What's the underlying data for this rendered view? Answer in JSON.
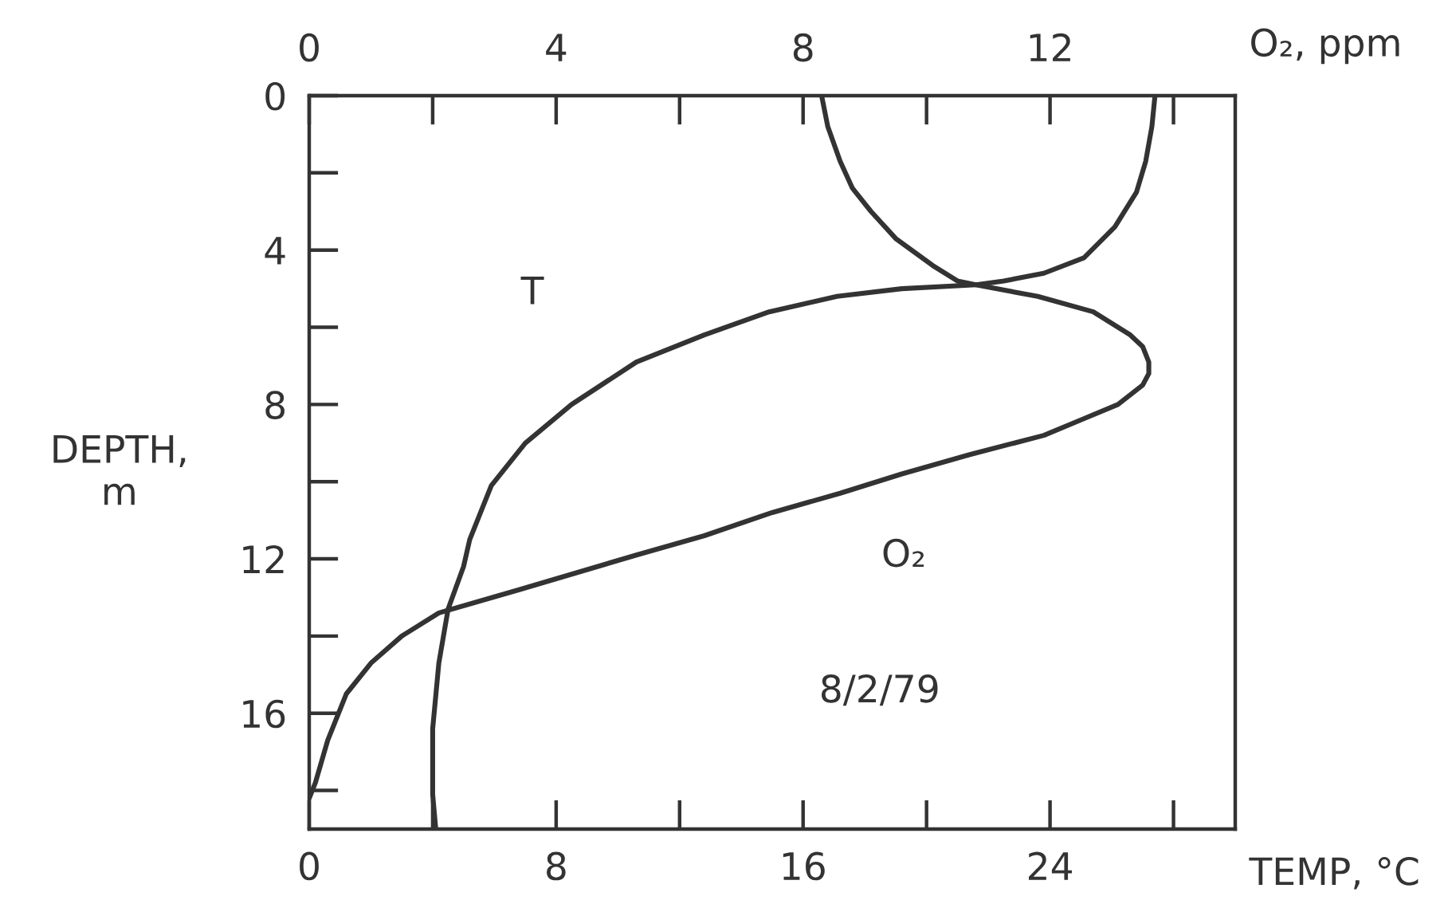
{
  "chart_data": {
    "type": "line",
    "xlabel": "TEMP, °C",
    "x2label": "O₂, ppm",
    "ylabel": "DEPTH,\nm",
    "annotations": [
      "8/2/79"
    ],
    "xlim": [
      0,
      30
    ],
    "xticks": [
      0,
      8,
      16,
      24
    ],
    "x2lim": [
      0,
      15
    ],
    "x2ticks": [
      0,
      4,
      8,
      12
    ],
    "ylim": [
      19,
      0
    ],
    "yticks": [
      0,
      4,
      8,
      12,
      16
    ],
    "series": [
      {
        "name": "T",
        "color": "#333333",
        "x": [
          27.4,
          27.3,
          27.1,
          26.8,
          26.1,
          25.1,
          23.8,
          22.5,
          21.6,
          19.2,
          17.1,
          14.9,
          12.8,
          10.6,
          8.5,
          7.0,
          5.9,
          5.2,
          5.0,
          4.5,
          4.2,
          4.0,
          4.0,
          4.1
        ],
        "values": [
          0,
          0.8,
          1.7,
          2.5,
          3.4,
          4.2,
          4.6,
          4.8,
          4.9,
          5.0,
          5.2,
          5.6,
          6.2,
          6.9,
          8.0,
          9.0,
          10.1,
          11.5,
          12.2,
          13.3,
          14.7,
          16.4,
          18.1,
          19.0
        ]
      },
      {
        "name": "O₂",
        "color": "#333333",
        "axis": "x2",
        "x": [
          8.3,
          8.4,
          8.6,
          8.8,
          9.1,
          9.5,
          10.1,
          10.5,
          10.8,
          11.8,
          12.7,
          13.3,
          13.5,
          13.6,
          13.6,
          13.5,
          13.1,
          12.5,
          11.9,
          10.7,
          9.6,
          8.6,
          7.5,
          6.4,
          5.3,
          3.4,
          2.1,
          1.5,
          1.0,
          0.6,
          0.3,
          0.1,
          0.0
        ],
        "values": [
          0,
          0.8,
          1.7,
          2.4,
          3.0,
          3.7,
          4.4,
          4.8,
          4.9,
          5.2,
          5.6,
          6.2,
          6.5,
          6.9,
          7.2,
          7.5,
          8.0,
          8.4,
          8.8,
          9.3,
          9.8,
          10.3,
          10.8,
          11.4,
          11.9,
          12.8,
          13.4,
          14.0,
          14.7,
          15.5,
          16.7,
          17.8,
          18.2
        ]
      }
    ]
  }
}
